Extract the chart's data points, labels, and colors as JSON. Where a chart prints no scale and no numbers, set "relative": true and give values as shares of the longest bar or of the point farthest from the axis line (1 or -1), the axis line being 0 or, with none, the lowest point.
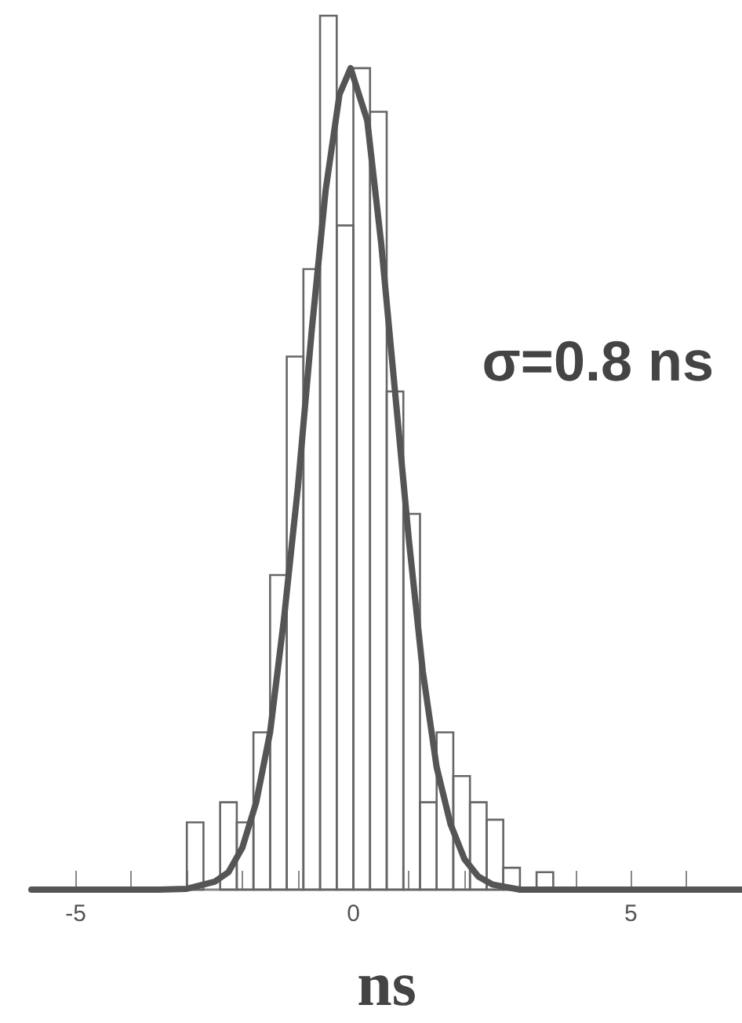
{
  "chart_data": {
    "type": "histogram",
    "xlabel": "ns",
    "annotations": [
      "σ=0.8 ns"
    ],
    "relative": true,
    "tick_labels": "x",
    "xlim": [
      -5.8,
      7
    ],
    "xticks": [
      -5,
      {
        "value": -4,
        "label": null
      },
      {
        "value": -3,
        "label": null
      },
      {
        "value": -2,
        "label": null
      },
      {
        "value": -1,
        "label": null
      },
      0,
      {
        "value": 1,
        "label": null
      },
      {
        "value": 2,
        "label": null
      },
      {
        "value": 3,
        "label": null
      },
      {
        "value": 4,
        "label": null
      },
      5,
      {
        "value": 6,
        "label": null
      }
    ],
    "series": [
      {
        "color": "#666666",
        "bins": [
          -3.0,
          -2.7,
          -2.4,
          -2.1,
          -1.8,
          -1.5,
          -1.2,
          -0.9,
          -0.6,
          -0.3,
          0,
          0.3,
          0.6,
          0.9,
          1.2,
          1.5,
          1.8,
          2.1,
          2.4,
          2.7,
          3.0,
          3.3,
          3.6
        ],
        "values": [
          0.077,
          0,
          0.1,
          0.077,
          0.18,
          0.36,
          0.61,
          0.71,
          1,
          0.76,
          0.94,
          0.89,
          0.57,
          0.43,
          0.1,
          0.18,
          0.13,
          0.1,
          0.08,
          0.025,
          0,
          0.02
        ]
      },
      {
        "type": "line",
        "color": "#555555",
        "x": [
          -5.8,
          -3.5,
          -3.0,
          -2.5,
          -2.25,
          -2.0,
          -1.75,
          -1.5,
          -1.25,
          -1.0,
          -0.75,
          -0.5,
          -0.25,
          -0.05,
          0.25,
          0.5,
          0.75,
          1.0,
          1.25,
          1.5,
          1.75,
          2.0,
          2.25,
          2.5,
          3.0,
          3.5,
          7
        ],
        "values": [
          0,
          0,
          0.001,
          0.009,
          0.02,
          0.048,
          0.1,
          0.18,
          0.31,
          0.46,
          0.64,
          0.8,
          0.91,
          0.94,
          0.88,
          0.74,
          0.57,
          0.4,
          0.25,
          0.14,
          0.075,
          0.035,
          0.015,
          0.006,
          0,
          0,
          0
        ]
      }
    ]
  }
}
